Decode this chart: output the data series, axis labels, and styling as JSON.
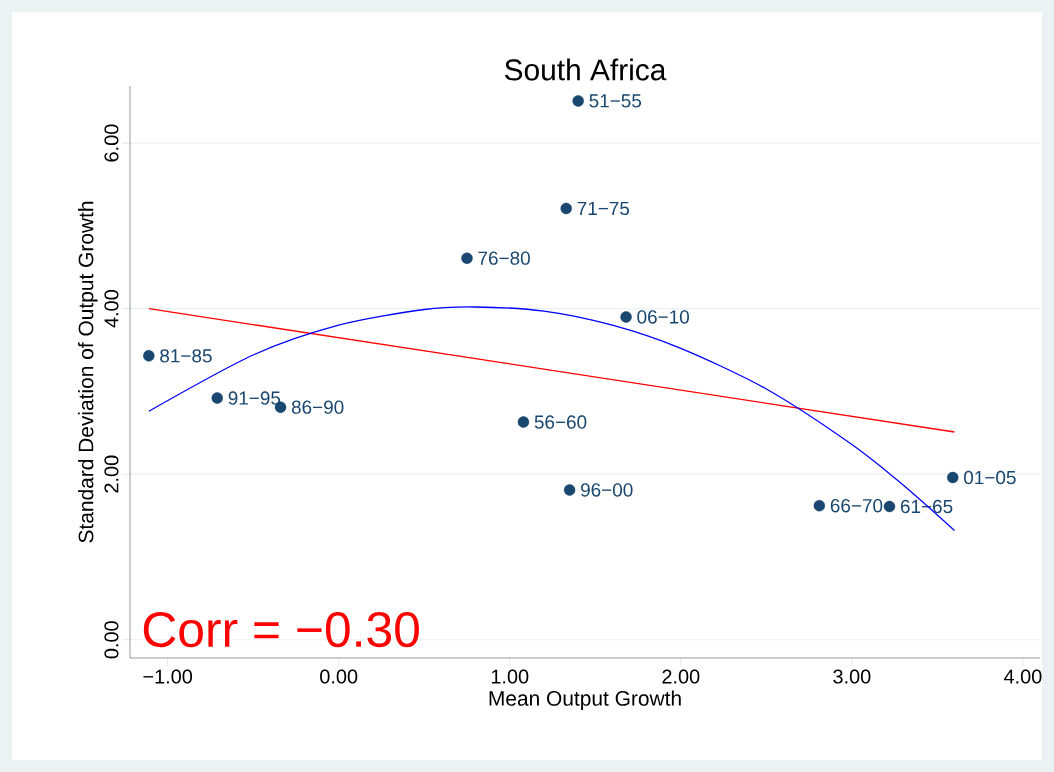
{
  "chart_data": {
    "type": "scatter",
    "title": "South Africa",
    "xlabel": "Mean Output Growth",
    "ylabel": "Standard Deviation of Output Growth",
    "xlim": [
      -1.22,
      4.1
    ],
    "ylim": [
      -0.22,
      6.69
    ],
    "xticks": [
      {
        "value": -1,
        "label": "−1.00"
      },
      {
        "value": 0,
        "label": "0.00"
      },
      {
        "value": 1,
        "label": "1.00"
      },
      {
        "value": 2,
        "label": "2.00"
      },
      {
        "value": 3,
        "label": "3.00"
      },
      {
        "value": 4,
        "label": "4.00"
      }
    ],
    "yticks": [
      {
        "value": 0,
        "label": "0.00"
      },
      {
        "value": 2,
        "label": "2.00"
      },
      {
        "value": 4,
        "label": "4.00"
      },
      {
        "value": 6,
        "label": "6.00"
      }
    ],
    "grid": "y",
    "annotations": [
      "Corr = −0.30"
    ],
    "series": [
      {
        "color": "#1a476f",
        "marker": "circle",
        "x": [
          1.4,
          1.33,
          0.75,
          1.68,
          -1.11,
          -0.71,
          -0.34,
          1.08,
          1.35,
          2.81,
          3.22,
          3.59
        ],
        "values": [
          6.51,
          5.21,
          4.61,
          3.9,
          3.43,
          2.92,
          2.81,
          2.63,
          1.81,
          1.62,
          1.61,
          1.96
        ],
        "value_labels": [
          "51−55",
          "71−75",
          "76−80",
          "06−10",
          "81−85",
          "91−95",
          "86−90",
          "56−60",
          "96−00",
          "66−70",
          "61−65",
          "01−05"
        ]
      },
      {
        "type": "line",
        "color": "#ff0000",
        "marker": "none",
        "x": [
          -1.11,
          3.6
        ],
        "values": [
          4.0,
          2.51
        ]
      },
      {
        "type": "line",
        "color": "#0000ff",
        "marker": "none",
        "x": [
          -1.11,
          -0.5,
          0,
          0.5,
          0.8,
          1.2,
          1.6,
          2.0,
          2.5,
          3.0,
          3.3,
          3.6
        ],
        "values": [
          2.76,
          3.44,
          3.8,
          3.99,
          4.02,
          3.97,
          3.8,
          3.52,
          3.03,
          2.36,
          1.87,
          1.32
        ]
      }
    ]
  }
}
